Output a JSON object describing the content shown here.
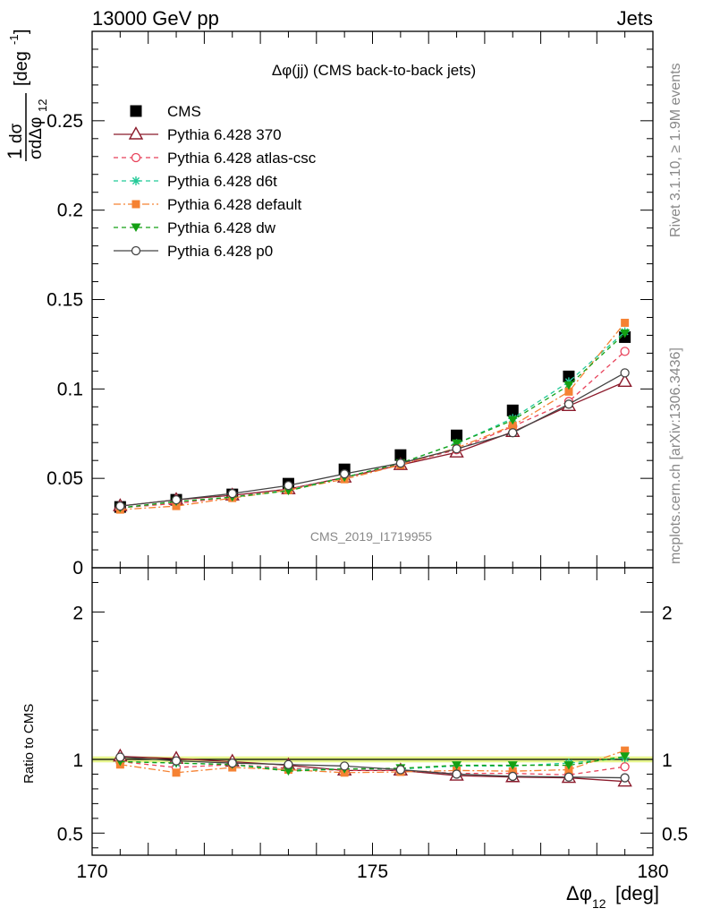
{
  "header": {
    "left": "13000 GeV pp",
    "right": "Jets"
  },
  "plot_title": "Δφ(jj) (CMS back-to-back jets)",
  "watermark": "CMS_2019_I1719955",
  "side_labels": {
    "rivet": "Rivet 3.1.10, ≥ 1.9M events",
    "mcplots": "mcplots.cern.ch [arXiv:1306.3436]"
  },
  "colors": {
    "CMS": "#000000",
    "p370": "#8b1a2b",
    "atlas": "#e8425a",
    "d6t": "#22c997",
    "default": "#f58233",
    "dw": "#14a014",
    "p0": "#444444",
    "band": "#e6f58c",
    "bandline": "#b8e04a"
  },
  "chart_data": [
    {
      "type": "scatter",
      "panel": "main",
      "xlabel": "Δφ12 [deg]",
      "ylabel": "1/σ dσ/dΔφ12 [deg⁻¹]",
      "xlim": [
        170,
        180
      ],
      "ylim": [
        0,
        0.3
      ],
      "yticks": [
        0,
        0.05,
        0.1,
        0.15,
        0.2,
        0.25
      ],
      "yticklabels": [
        "0",
        "0.05",
        "0.1",
        "0.15",
        "0.2",
        "0.25"
      ],
      "legend_position": "top-left",
      "x": [
        170.5,
        171.5,
        172.5,
        173.5,
        174.5,
        175.5,
        176.5,
        177.5,
        178.5,
        179.5
      ],
      "series": [
        {
          "name": "CMS",
          "key": "CMS",
          "marker": "square",
          "line": "none",
          "values": [
            0.034,
            0.038,
            0.041,
            0.047,
            0.055,
            0.063,
            0.074,
            0.088,
            0.107,
            0.129
          ]
        },
        {
          "name": "Pythia 6.428 370",
          "key": "p370",
          "marker": "open-triangle",
          "line": "solid",
          "values": [
            0.0345,
            0.038,
            0.0405,
            0.044,
            0.0505,
            0.0575,
            0.0645,
            0.076,
            0.0905,
            0.104
          ]
        },
        {
          "name": "Pythia 6.428 atlas-csc",
          "key": "atlas",
          "marker": "open-circle",
          "line": "dashed",
          "values": [
            0.0335,
            0.036,
            0.0395,
            0.044,
            0.0505,
            0.058,
            0.066,
            0.079,
            0.093,
            0.121
          ]
        },
        {
          "name": "Pythia 6.428 d6t",
          "key": "d6t",
          "marker": "star",
          "line": "dashed",
          "values": [
            0.0335,
            0.037,
            0.0395,
            0.0435,
            0.0505,
            0.0585,
            0.0695,
            0.0835,
            0.104,
            0.132
          ]
        },
        {
          "name": "Pythia 6.428 default",
          "key": "default",
          "marker": "square",
          "line": "dashdot",
          "values": [
            0.0325,
            0.0345,
            0.039,
            0.0435,
            0.0495,
            0.0575,
            0.067,
            0.0795,
            0.0985,
            0.137
          ]
        },
        {
          "name": "Pythia 6.428 dw",
          "key": "dw",
          "marker": "down-triangle",
          "line": "dashed",
          "values": [
            0.0335,
            0.037,
            0.0395,
            0.043,
            0.0505,
            0.0585,
            0.0695,
            0.0825,
            0.102,
            0.131
          ]
        },
        {
          "name": "Pythia 6.428 p0",
          "key": "p0",
          "marker": "open-circle",
          "line": "solid",
          "values": [
            0.0345,
            0.038,
            0.0415,
            0.046,
            0.0525,
            0.0585,
            0.0665,
            0.0755,
            0.0915,
            0.109
          ]
        }
      ]
    },
    {
      "type": "line",
      "panel": "ratio",
      "xlabel": "Δφ12 [deg]",
      "ylabel": "Ratio to CMS",
      "xlim": [
        170,
        180
      ],
      "ylim": [
        0.35,
        2.3
      ],
      "yticks": [
        0.5,
        1,
        2
      ],
      "yticklabels": [
        "0.5",
        "1",
        "2"
      ],
      "xticks": [
        170,
        175,
        180
      ],
      "xticklabels": [
        "170",
        "175",
        "180"
      ],
      "band": [
        0.98,
        1.02
      ],
      "x": [
        170.5,
        171.5,
        172.5,
        173.5,
        174.5,
        175.5,
        176.5,
        177.5,
        178.5,
        179.5
      ],
      "series": [
        {
          "key": "p370",
          "marker": "open-triangle",
          "line": "solid",
          "values": [
            1.02,
            1.005,
            0.985,
            0.96,
            0.925,
            0.925,
            0.89,
            0.88,
            0.875,
            0.85
          ]
        },
        {
          "key": "atlas",
          "marker": "open-circle",
          "line": "dashed",
          "values": [
            0.985,
            0.945,
            0.965,
            0.94,
            0.925,
            0.925,
            0.905,
            0.905,
            0.895,
            0.95
          ]
        },
        {
          "key": "d6t",
          "marker": "star",
          "line": "dashed",
          "values": [
            0.985,
            0.975,
            0.965,
            0.93,
            0.935,
            0.935,
            0.955,
            0.955,
            0.975,
            1.01
          ]
        },
        {
          "key": "default",
          "marker": "square",
          "line": "dashdot",
          "values": [
            0.965,
            0.91,
            0.945,
            0.93,
            0.91,
            0.915,
            0.925,
            0.92,
            0.93,
            1.06
          ]
        },
        {
          "key": "dw",
          "marker": "down-triangle",
          "line": "dashed",
          "values": [
            0.985,
            0.975,
            0.965,
            0.92,
            0.935,
            0.94,
            0.96,
            0.96,
            0.96,
            1.02
          ]
        },
        {
          "key": "p0",
          "marker": "open-circle",
          "line": "solid",
          "values": [
            1.015,
            0.99,
            0.975,
            0.965,
            0.955,
            0.93,
            0.9,
            0.885,
            0.88,
            0.875
          ]
        }
      ]
    }
  ]
}
